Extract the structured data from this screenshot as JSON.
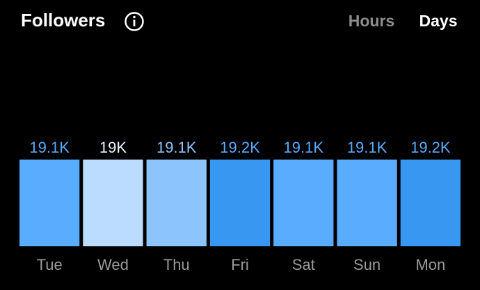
{
  "chart_data": {
    "type": "bar",
    "title": "Followers",
    "tabs": [
      "Hours",
      "Days"
    ],
    "active_tab": 1,
    "categories": [
      "Tue",
      "Wed",
      "Thu",
      "Fri",
      "Sat",
      "Sun",
      "Mon"
    ],
    "values": [
      19100,
      19000,
      19100,
      19200,
      19100,
      19100,
      19200
    ],
    "value_labels": [
      "19.1K",
      "19K",
      "19.1K",
      "19.2K",
      "19.1K",
      "19.1K",
      "19.2K"
    ],
    "colors": [
      "#5aacfe",
      "#bbdcfe",
      "#8cc5fe",
      "#3897f0",
      "#5aacfe",
      "#5aacfe",
      "#3897f0"
    ],
    "value_label_colors": [
      "#5aacfe",
      "#e6f2ff",
      "#8cc5fe",
      "#5aacfe",
      "#5aacfe",
      "#5aacfe",
      "#5aacfe"
    ]
  }
}
